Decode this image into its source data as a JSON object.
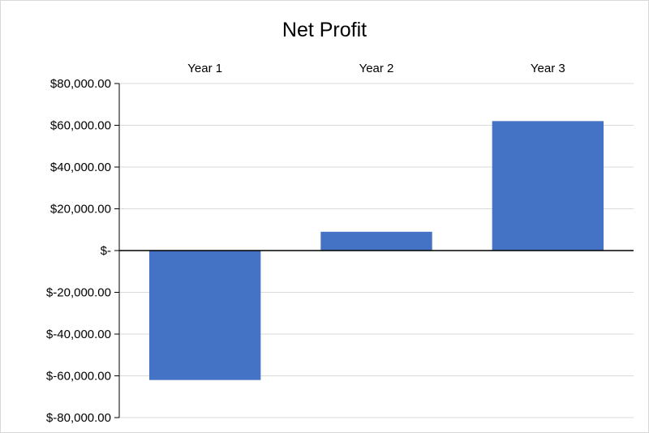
{
  "chart_data": {
    "type": "bar",
    "title": "Net Profit",
    "categories": [
      "Year 1",
      "Year 2",
      "Year 3"
    ],
    "series": [
      {
        "values": [
          -62000,
          9000,
          62000
        ]
      }
    ],
    "ylim": [
      -80000,
      80000
    ],
    "yticks": [
      80000,
      60000,
      40000,
      20000,
      0,
      -20000,
      -40000,
      -60000,
      -80000
    ],
    "ytick_labels": [
      "$80,000.00",
      "$60,000.00",
      "$40,000.00",
      "$20,000.00",
      "$-",
      "$-20,000.00",
      "$-40,000.00",
      "$-60,000.00",
      "$-80,000.00"
    ],
    "category_labels_position": "top",
    "grid": true,
    "legend": "none",
    "colors": {
      "bar": "#4472C4",
      "grid": "#d9d9d9",
      "axis": "#000000"
    }
  }
}
